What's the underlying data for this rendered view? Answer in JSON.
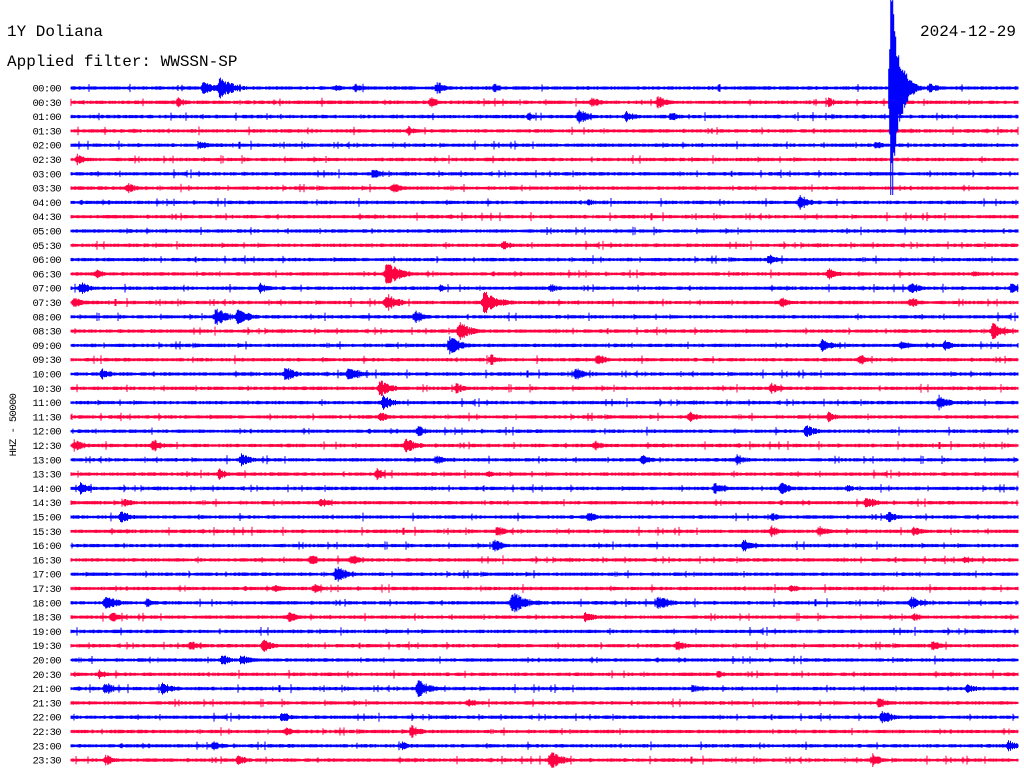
{
  "header": {
    "station": "1Y Doliana",
    "filter": "Applied filter: WWSSN-SP",
    "date": "2024-12-29"
  },
  "chart_data": {
    "type": "line",
    "subtype": "helicorder",
    "title": "1Y Doliana",
    "ylabel": "HHZ - 50000",
    "minutes_per_row": 30,
    "colors": [
      "#0000ff",
      "#ff0040"
    ],
    "row_labels": [
      "00:00",
      "00:30",
      "01:00",
      "01:30",
      "02:00",
      "02:30",
      "03:00",
      "03:30",
      "04:00",
      "04:30",
      "05:00",
      "05:30",
      "06:00",
      "06:30",
      "07:00",
      "07:30",
      "08:00",
      "08:30",
      "09:00",
      "09:30",
      "10:00",
      "10:30",
      "11:00",
      "11:30",
      "12:00",
      "12:30",
      "13:00",
      "13:30",
      "14:00",
      "14:30",
      "15:00",
      "15:30",
      "16:00",
      "16:30",
      "17:00",
      "17:30",
      "18:00",
      "18:30",
      "19:00",
      "19:30",
      "20:00",
      "20:30",
      "21:00",
      "21:30",
      "22:00",
      "22:30",
      "23:00",
      "23:30"
    ],
    "events_note": "each event: [row index, minute within row, relative amplitude]",
    "events": [
      [
        0,
        4.2,
        8
      ],
      [
        0,
        4.7,
        12
      ],
      [
        0,
        8.4,
        4
      ],
      [
        0,
        9.0,
        5
      ],
      [
        0,
        11.6,
        7
      ],
      [
        0,
        13.4,
        5
      ],
      [
        0,
        26.0,
        95
      ],
      [
        0,
        27.2,
        6
      ],
      [
        1,
        3.4,
        5
      ],
      [
        1,
        11.4,
        6
      ],
      [
        1,
        16.5,
        6
      ],
      [
        1,
        18.6,
        7
      ],
      [
        1,
        24.0,
        5
      ],
      [
        2,
        14.5,
        4
      ],
      [
        2,
        16.1,
        8
      ],
      [
        2,
        17.6,
        6
      ],
      [
        2,
        19.0,
        6
      ],
      [
        3,
        10.7,
        5
      ],
      [
        4,
        4.1,
        5
      ],
      [
        4,
        25.5,
        5
      ],
      [
        5,
        0.2,
        6
      ],
      [
        6,
        9.6,
        6
      ],
      [
        7,
        1.8,
        6
      ],
      [
        7,
        10.2,
        6
      ],
      [
        8,
        16.4,
        4
      ],
      [
        8,
        23.1,
        8
      ],
      [
        11,
        13.7,
        5
      ],
      [
        12,
        22.1,
        6
      ],
      [
        13,
        0.8,
        5
      ],
      [
        13,
        10.0,
        13
      ],
      [
        13,
        24.0,
        7
      ],
      [
        13,
        28.6,
        4
      ],
      [
        14,
        0.3,
        7
      ],
      [
        14,
        6.0,
        6
      ],
      [
        14,
        11.7,
        4
      ],
      [
        14,
        15.2,
        5
      ],
      [
        14,
        26.6,
        7
      ],
      [
        14,
        29.8,
        7
      ],
      [
        15,
        0.1,
        6
      ],
      [
        15,
        10.0,
        10
      ],
      [
        15,
        13.1,
        13
      ],
      [
        15,
        22.5,
        6
      ],
      [
        15,
        26.6,
        6
      ],
      [
        16,
        4.6,
        10
      ],
      [
        16,
        5.3,
        9
      ],
      [
        16,
        10.9,
        7
      ],
      [
        17,
        12.3,
        10
      ],
      [
        17,
        29.2,
        9
      ],
      [
        18,
        12.0,
        10
      ],
      [
        18,
        23.8,
        8
      ],
      [
        18,
        26.3,
        6
      ],
      [
        18,
        27.7,
        6
      ],
      [
        19,
        13.3,
        6
      ],
      [
        19,
        16.7,
        6
      ],
      [
        19,
        25.0,
        6
      ],
      [
        20,
        1.0,
        6
      ],
      [
        20,
        6.8,
        8
      ],
      [
        20,
        8.8,
        9
      ],
      [
        20,
        16.0,
        7
      ],
      [
        21,
        9.8,
        9
      ],
      [
        21,
        12.2,
        6
      ],
      [
        21,
        22.2,
        6
      ],
      [
        22,
        9.9,
        8
      ],
      [
        22,
        27.5,
        8
      ],
      [
        23,
        9.8,
        6
      ],
      [
        23,
        19.6,
        6
      ],
      [
        23,
        24.0,
        6
      ],
      [
        24,
        11.0,
        6
      ],
      [
        24,
        23.3,
        7
      ],
      [
        25,
        0.1,
        7
      ],
      [
        25,
        2.6,
        7
      ],
      [
        25,
        10.6,
        9
      ],
      [
        25,
        16.6,
        6
      ],
      [
        26,
        5.4,
        7
      ],
      [
        26,
        11.6,
        5
      ],
      [
        26,
        18.1,
        6
      ],
      [
        26,
        21.1,
        6
      ],
      [
        27,
        4.7,
        6
      ],
      [
        27,
        9.7,
        6
      ],
      [
        27,
        13.2,
        4
      ],
      [
        28,
        0.3,
        7
      ],
      [
        28,
        20.4,
        7
      ],
      [
        28,
        22.5,
        7
      ],
      [
        28,
        24.6,
        4
      ],
      [
        29,
        1.7,
        5
      ],
      [
        29,
        7.9,
        6
      ],
      [
        29,
        25.2,
        7
      ],
      [
        30,
        1.6,
        7
      ],
      [
        30,
        16.4,
        6
      ],
      [
        30,
        22.2,
        5
      ],
      [
        30,
        25.9,
        6
      ],
      [
        31,
        13.5,
        6
      ],
      [
        31,
        22.2,
        6
      ],
      [
        31,
        23.7,
        6
      ],
      [
        31,
        26.7,
        6
      ],
      [
        32,
        13.4,
        7
      ],
      [
        32,
        21.3,
        7
      ],
      [
        33,
        7.6,
        6
      ],
      [
        33,
        8.9,
        6
      ],
      [
        33,
        28.3,
        5
      ],
      [
        34,
        8.4,
        9
      ],
      [
        35,
        6.5,
        5
      ],
      [
        35,
        7.7,
        5
      ],
      [
        35,
        22.8,
        5
      ],
      [
        36,
        1.1,
        9
      ],
      [
        36,
        2.4,
        5
      ],
      [
        36,
        14.0,
        12
      ],
      [
        36,
        18.6,
        9
      ],
      [
        36,
        26.6,
        8
      ],
      [
        37,
        1.3,
        6
      ],
      [
        37,
        6.9,
        6
      ],
      [
        37,
        16.3,
        6
      ],
      [
        37,
        26.7,
        5
      ],
      [
        39,
        3.8,
        6
      ],
      [
        39,
        6.1,
        7
      ],
      [
        39,
        19.2,
        6
      ],
      [
        39,
        27.3,
        6
      ],
      [
        40,
        4.8,
        6
      ],
      [
        40,
        5.4,
        6
      ],
      [
        41,
        0.9,
        5
      ],
      [
        41,
        20.5,
        4
      ],
      [
        42,
        1.1,
        7
      ],
      [
        42,
        2.9,
        7
      ],
      [
        42,
        11.0,
        10
      ],
      [
        42,
        19.7,
        5
      ],
      [
        42,
        28.4,
        6
      ],
      [
        43,
        12.6,
        5
      ],
      [
        43,
        25.6,
        6
      ],
      [
        44,
        6.7,
        6
      ],
      [
        44,
        25.7,
        8
      ],
      [
        45,
        6.8,
        5
      ],
      [
        45,
        10.8,
        7
      ],
      [
        46,
        4.5,
        6
      ],
      [
        46,
        10.5,
        5
      ],
      [
        46,
        29.7,
        6
      ],
      [
        47,
        1.1,
        6
      ],
      [
        47,
        5.3,
        6
      ],
      [
        47,
        15.2,
        10
      ],
      [
        47,
        25.4,
        7
      ]
    ]
  }
}
